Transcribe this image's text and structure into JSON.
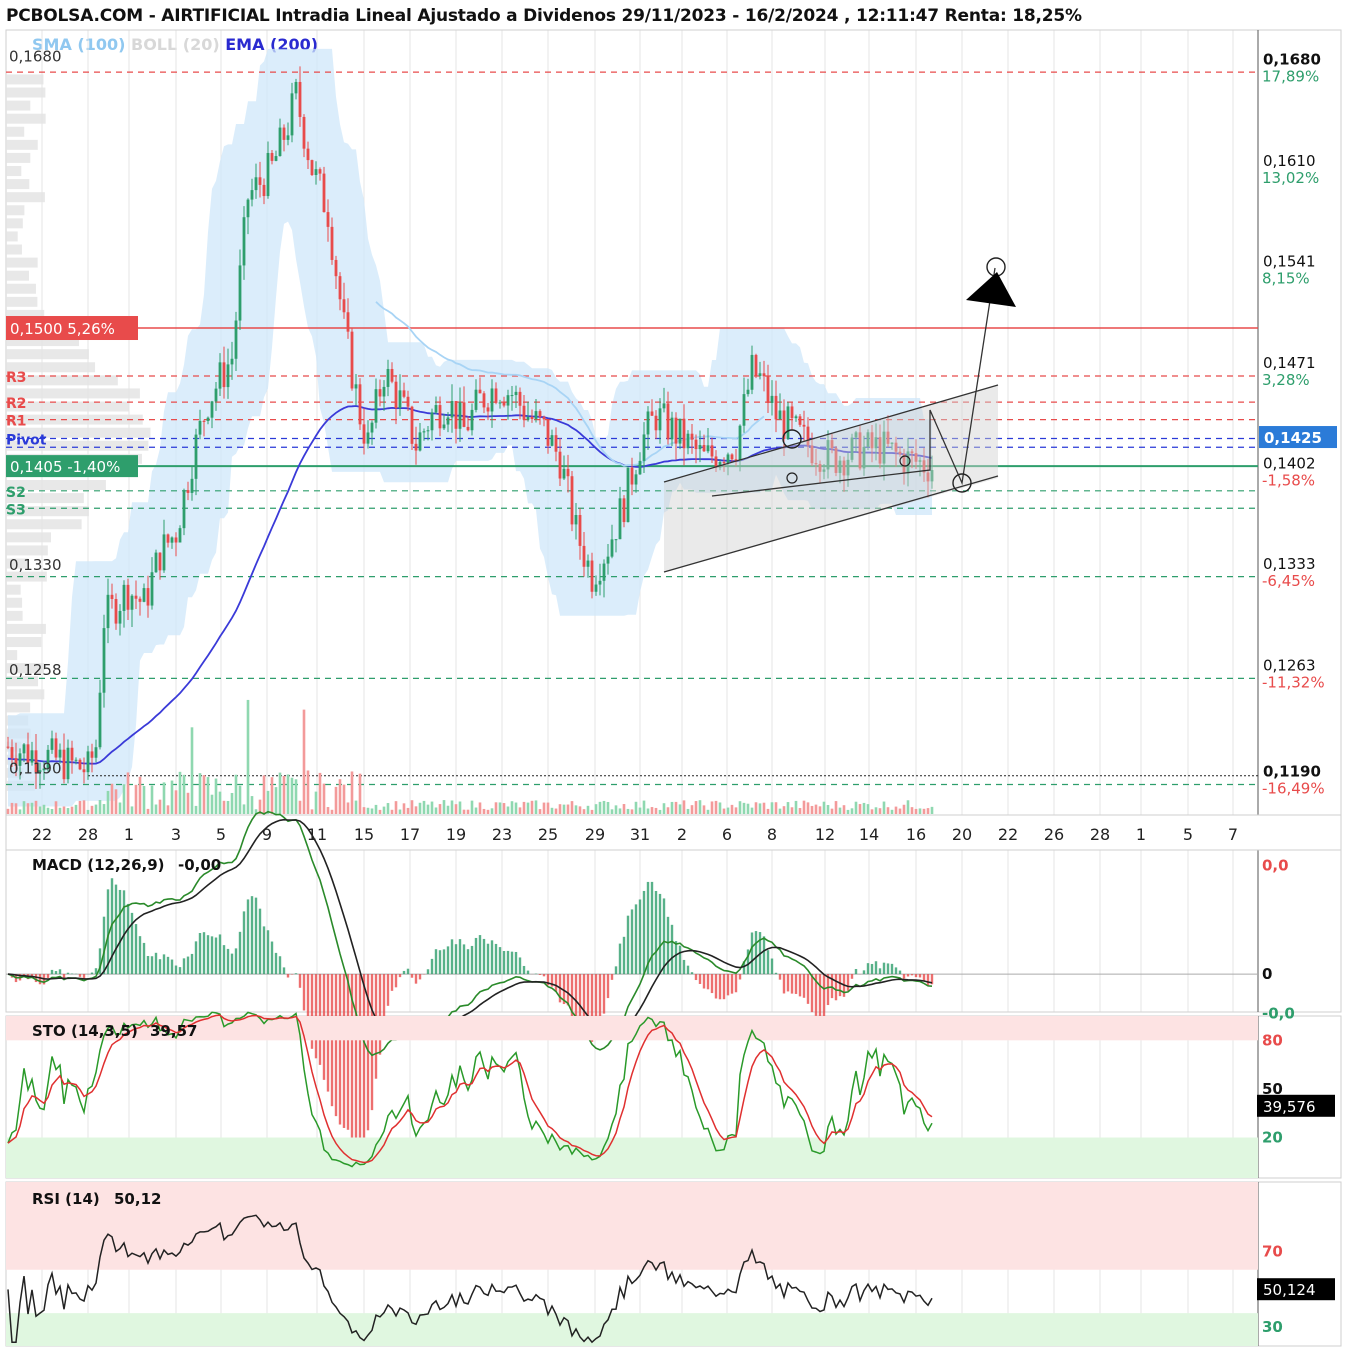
{
  "header": {
    "site": "PCBOLSA.COM",
    "title_rest": " - AIRTIFICIAL Intradia Lineal Ajustado a Dividenos 29/11/2023 - 16/2/2024 , 12:11:47 Renta: 18,25%"
  },
  "legend": [
    {
      "label": "SMA (100)",
      "color": "#90c8f0"
    },
    {
      "label": "BOLL (20)",
      "color": "#d8d8d8"
    },
    {
      "label": "EMA (200)",
      "color": "#2a2ad0"
    }
  ],
  "colors": {
    "up": "#2e9e6c",
    "down": "#e84b4b",
    "bollinger_fill": "#cfe7fa",
    "sma": "#a8d4f5",
    "ema": "#3a3ad8",
    "resistance": "#e84b4b",
    "support": "#2e9e6c",
    "pivot": "#2a3ad8",
    "grid": "#e6e6e6",
    "overbought_zone": "#fde3e3",
    "oversold_zone": "#e0f7e0"
  },
  "chart_data": [
    {
      "type": "candlestick",
      "name": "price",
      "ylim": [
        0.1165,
        0.1705
      ],
      "x_tick_labels": [
        "22",
        "28",
        "1",
        "3",
        "5",
        "9",
        "11",
        "15",
        "17",
        "19",
        "23",
        "25",
        "29",
        "31",
        "2",
        "6",
        "8",
        "12",
        "14",
        "16",
        "20",
        "22",
        "26",
        "28",
        "1",
        "5",
        "7"
      ],
      "left_labels": [
        {
          "text": "0,1680",
          "value": 0.168
        },
        {
          "text": "0,1330",
          "value": 0.133
        },
        {
          "text": "0,1258",
          "value": 0.1258
        },
        {
          "text": "0,1190",
          "value": 0.119
        }
      ],
      "right_labels": [
        {
          "price": "0,1680",
          "pct": "17,89%",
          "value": 0.168,
          "dir": "up"
        },
        {
          "price": "0,1610",
          "pct": "13,02%",
          "value": 0.161,
          "dir": "up"
        },
        {
          "price": "0,1541",
          "pct": "8,15%",
          "value": 0.1541,
          "dir": "up"
        },
        {
          "price": "0,1471",
          "pct": "3,28%",
          "value": 0.1471,
          "dir": "up"
        },
        {
          "price": "0,1402",
          "pct": "-1,58%",
          "value": 0.1402,
          "dir": "down"
        },
        {
          "price": "0,1333",
          "pct": "-6,45%",
          "value": 0.1333,
          "dir": "down"
        },
        {
          "price": "0,1263",
          "pct": "-11,32%",
          "value": 0.1263,
          "dir": "down"
        },
        {
          "price": "0,1190",
          "pct": "-16,49%",
          "value": 0.119,
          "dir": "down"
        }
      ],
      "current_price_label": "0,1425",
      "current_price_value": 0.1425,
      "resistance_label": "0,1500  5,26%",
      "resistance_value": 0.15,
      "last_close_label": "0,1405  -1,40%",
      "last_close_value": 0.1405,
      "levels": [
        {
          "label": "R3",
          "value": 0.1467,
          "kind": "r"
        },
        {
          "label": "R2",
          "value": 0.1449,
          "kind": "r"
        },
        {
          "label": "R1",
          "value": 0.1437,
          "kind": "r"
        },
        {
          "label": "Pivot",
          "value": 0.1424,
          "kind": "p"
        },
        {
          "label": "",
          "value": 0.1418,
          "kind": "p"
        },
        {
          "label": "S2",
          "value": 0.1388,
          "kind": "s"
        },
        {
          "label": "S3",
          "value": 0.1376,
          "kind": "s"
        },
        {
          "label": "",
          "value": 0.1676,
          "kind": "r"
        },
        {
          "label": "",
          "value": 0.1329,
          "kind": "s"
        },
        {
          "label": "",
          "value": 0.1259,
          "kind": "s"
        },
        {
          "label": "",
          "value": 0.1186,
          "kind": "s"
        }
      ]
    },
    {
      "type": "line",
      "name": "MACD",
      "title": "MACD (12,26,9)",
      "value_label": "-0,00",
      "ylim": [
        -0.0022,
        0.0072
      ],
      "right_labels": [
        {
          "text": "0,0",
          "value": 0.0063,
          "color": "#e84b4b"
        },
        {
          "text": "0",
          "value": 0.0,
          "color": "#111"
        },
        {
          "text": "-0,0",
          "value": -0.0023,
          "color": "#2e9e6c"
        }
      ]
    },
    {
      "type": "line",
      "name": "STO",
      "title": "STO (14,3,5)",
      "value_label": "39,57",
      "current": "39,576",
      "current_value": 39.576,
      "ylim": [
        -5,
        95
      ],
      "right_labels": [
        {
          "text": "80",
          "value": 80,
          "color": "#e84b4b"
        },
        {
          "text": "50",
          "value": 50,
          "color": "#111"
        },
        {
          "text": "20",
          "value": 20,
          "color": "#2e9e6c"
        }
      ]
    },
    {
      "type": "line",
      "name": "RSI",
      "title": "RSI (14)",
      "value_label": "50,12",
      "current": "50,124",
      "current_value": 50.124,
      "ylim": [
        20,
        107
      ],
      "right_labels": [
        {
          "text": "70",
          "value": 70,
          "color": "#e84b4b"
        },
        {
          "text": "30",
          "value": 30,
          "color": "#2e9e6c"
        }
      ]
    }
  ]
}
